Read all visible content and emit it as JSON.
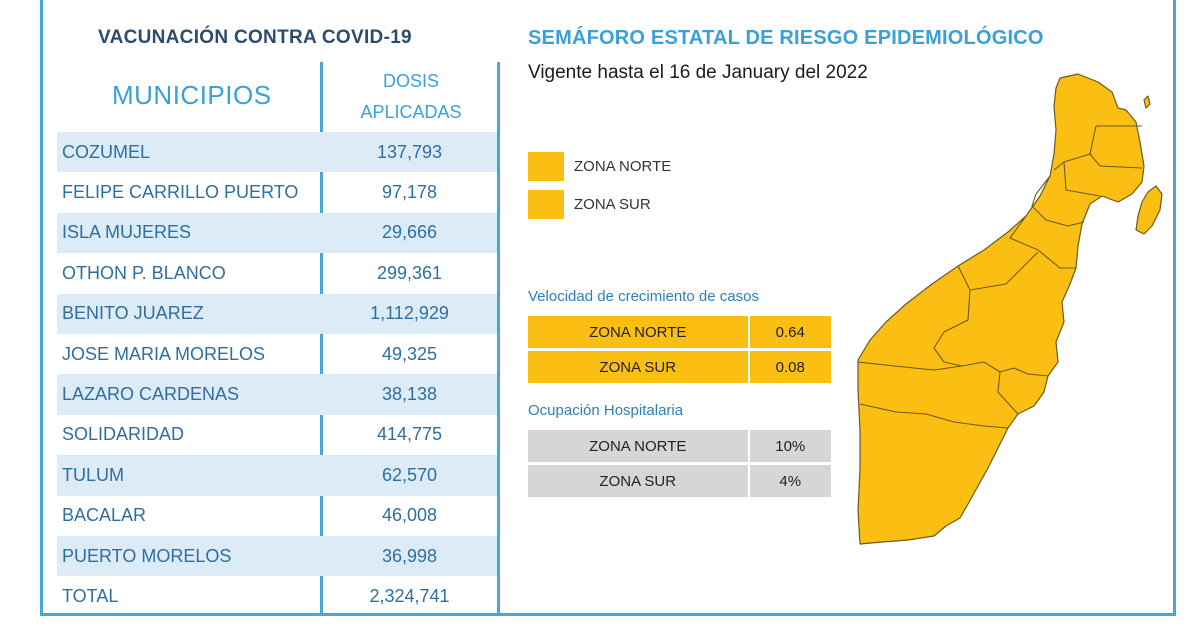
{
  "left_panel": {
    "title": "VACUNACIÓN CONTRA COVID-19",
    "column_municipios": "MUNICIPIOS",
    "column_dosis_line1": "DOSIS",
    "column_dosis_line2": "APLICADAS",
    "rows": [
      {
        "name": "COZUMEL",
        "value": "137,793"
      },
      {
        "name": "FELIPE CARRILLO PUERTO",
        "value": "97,178"
      },
      {
        "name": "ISLA MUJERES",
        "value": "29,666"
      },
      {
        "name": "OTHON P. BLANCO",
        "value": "299,361"
      },
      {
        "name": "BENITO JUAREZ",
        "value": "1,112,929"
      },
      {
        "name": "JOSE MARIA MORELOS",
        "value": "49,325"
      },
      {
        "name": "LAZARO CARDENAS",
        "value": "38,138"
      },
      {
        "name": "SOLIDARIDAD",
        "value": "414,775"
      },
      {
        "name": "TULUM",
        "value": "62,570"
      },
      {
        "name": "BACALAR",
        "value": "46,008"
      },
      {
        "name": "PUERTO MORELOS",
        "value": "36,998"
      },
      {
        "name": "TOTAL",
        "value": "2,324,741"
      }
    ]
  },
  "right_panel": {
    "title": "SEMÁFORO ESTATAL DE RIESGO EPIDEMIOLÓGICO",
    "vigente": "Vigente hasta el 16 de January del 2022",
    "legend": [
      {
        "label": "ZONA NORTE",
        "color": "#fbbf14"
      },
      {
        "label": "ZONA SUR",
        "color": "#fbbf14"
      }
    ],
    "velocidad": {
      "label": "Velocidad de crecimiento de casos",
      "rows": [
        {
          "zone": "ZONA NORTE",
          "value": "0.64"
        },
        {
          "zone": "ZONA SUR",
          "value": "0.08"
        }
      ]
    },
    "ocupacion": {
      "label": "Ocupación Hospitalaria",
      "rows": [
        {
          "zone": "ZONA NORTE",
          "value": "10%"
        },
        {
          "zone": "ZONA SUR",
          "value": "4%"
        }
      ]
    }
  },
  "colors": {
    "accent_blue": "#3aa0d8",
    "row_alt": "#dcebf6",
    "zone_yellow": "#fbbf14",
    "gray": "#d6d6d6"
  }
}
